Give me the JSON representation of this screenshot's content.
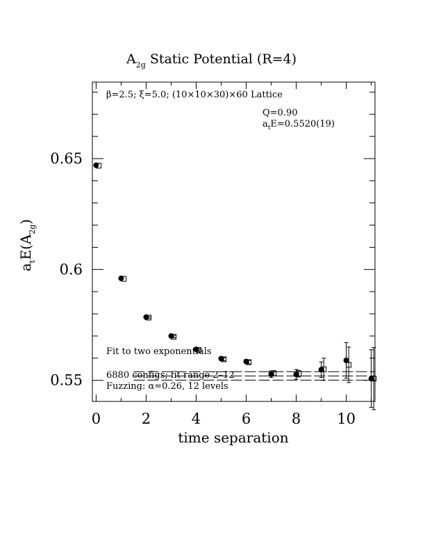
{
  "chart_data": {
    "type": "scatter",
    "title": "A",
    "title_subscript": "2g",
    "title_rest": " Static Potential (R=4)",
    "xlabel": "time separation",
    "ylabel": "a",
    "ylabel_t": "t",
    "ylabel_mid": "E(A",
    "ylabel_sub": "2g",
    "ylabel_end": ")",
    "xlim": [
      -0.15,
      11.15
    ],
    "ylim": [
      0.5405,
      0.6845
    ],
    "x_ticks": [
      0,
      2,
      4,
      6,
      8,
      10
    ],
    "x_tick_labels": [
      "0",
      "2",
      "4",
      "6",
      "8",
      "10"
    ],
    "y_ticks": [
      0.55,
      0.6,
      0.65
    ],
    "y_tick_labels": [
      "0.55",
      "0.6",
      "0.65"
    ],
    "grid": false,
    "annotations": {
      "lattice": "β=2.5; ξ=5.0; (10×10×30)×60 Lattice",
      "q": "Q=0.90",
      "energy_a": "a",
      "energy_t": "t",
      "energy_rest": "E=0.5520(19)",
      "fit": "Fit to two exponentials",
      "configs": "6880 configs; fit range 2–12",
      "fuzzing": "Fuzzing: α=0.26, 12 levels"
    },
    "series": [
      {
        "marker": "filled-circle",
        "x": [
          0,
          1,
          2,
          3,
          4,
          5,
          6,
          7,
          8,
          9,
          10,
          11
        ],
        "y": [
          0.647,
          0.596,
          0.5785,
          0.57,
          0.564,
          0.5598,
          0.5585,
          0.5528,
          0.5527,
          0.5548,
          0.559,
          0.5508
        ],
        "yerr": [
          0.0003,
          0.0003,
          0.0004,
          0.0005,
          0.0006,
          0.0007,
          0.0008,
          0.0015,
          0.0022,
          0.0035,
          0.008,
          0.013
        ]
      },
      {
        "marker": "open-square",
        "x": [
          0.1,
          1.1,
          2.1,
          3.1,
          4.1,
          5.1,
          6.1,
          7.1,
          8.1,
          9.1,
          10.1,
          11.1
        ],
        "y": [
          0.6468,
          0.5958,
          0.5783,
          0.5697,
          0.5637,
          0.5595,
          0.5582,
          0.5532,
          0.553,
          0.555,
          0.557,
          0.5508
        ],
        "yerr": [
          0.0003,
          0.0003,
          0.0004,
          0.0005,
          0.0006,
          0.0007,
          0.0008,
          0.0012,
          0.0015,
          0.005,
          0.008,
          0.014
        ]
      }
    ],
    "fit_band": {
      "x_range": [
        1.5,
        11.15
      ],
      "center": 0.552,
      "error": 0.0019
    }
  }
}
